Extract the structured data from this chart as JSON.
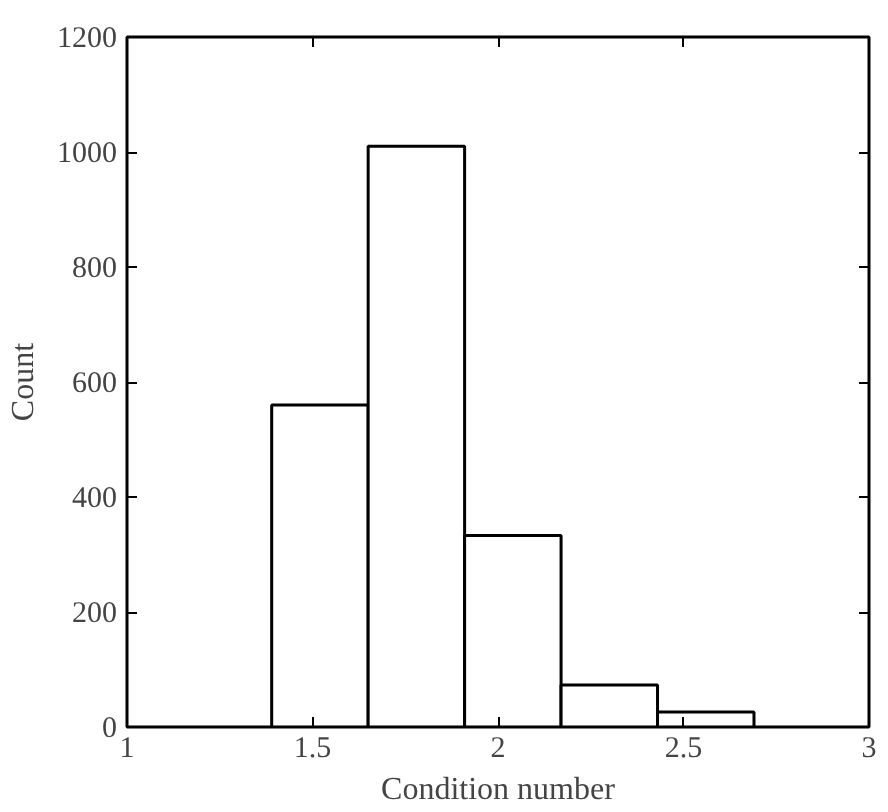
{
  "chart_data": {
    "type": "histogram",
    "xlabel": "Condition number",
    "ylabel": "Count",
    "bins": [
      1.39,
      1.65,
      1.91,
      2.17,
      2.43,
      2.69
    ],
    "values": [
      560,
      1010,
      333,
      73,
      26
    ],
    "color": "#ffffff",
    "xlim": [
      1,
      3
    ],
    "xticks": [
      1,
      1.5,
      2,
      2.5,
      3
    ],
    "ylim": [
      0,
      1200
    ],
    "yticks": [
      0,
      200,
      400,
      600,
      800,
      1000,
      1200
    ],
    "grid": false
  }
}
